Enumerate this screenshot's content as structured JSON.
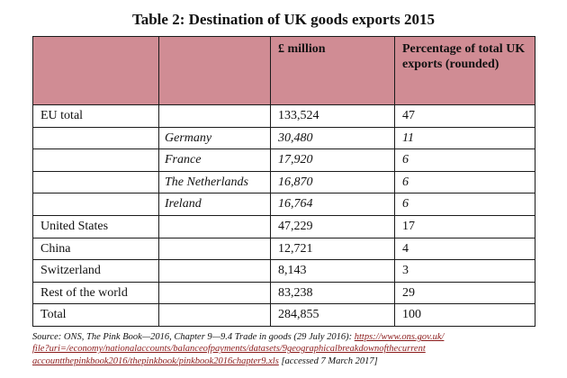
{
  "title": "Table 2: Destination of UK goods exports 2015",
  "table": {
    "headers": [
      "",
      "",
      "£ million",
      "Percentage of total UK exports (rounded)"
    ],
    "rows": [
      {
        "region": "EU total",
        "country": "",
        "value": "133,524",
        "pct": "47",
        "italic": false
      },
      {
        "region": "",
        "country": "Germany",
        "value": "30,480",
        "pct": "11",
        "italic": true
      },
      {
        "region": "",
        "country": "France",
        "value": "17,920",
        "pct": "6",
        "italic": true
      },
      {
        "region": "",
        "country": "The Netherlands",
        "value": "16,870",
        "pct": "6",
        "italic": true
      },
      {
        "region": "",
        "country": "Ireland",
        "value": "16,764",
        "pct": "6",
        "italic": true
      },
      {
        "region": "United States",
        "country": "",
        "value": "47,229",
        "pct": "17",
        "italic": false
      },
      {
        "region": "China",
        "country": "",
        "value": "12,721",
        "pct": "4",
        "italic": false
      },
      {
        "region": "Switzerland",
        "country": "",
        "value": "8,143",
        "pct": "3",
        "italic": false
      },
      {
        "region": "Rest of the world",
        "country": "",
        "value": "83,238",
        "pct": "29",
        "italic": false
      },
      {
        "region": "Total",
        "country": "",
        "value": "284,855",
        "pct": "100",
        "italic": false
      }
    ]
  },
  "source": {
    "prefix": "Source: ONS, The Pink Book—2016, Chapter 9—9.4 Trade in goods (29 July 2016): ",
    "link_line1": "https://www.ons.gov.uk/",
    "link_line2": "file?uri=/economy/nationalaccounts/balanceofpayments/datasets/9geographicalbreakdownofthecurrent",
    "link_line3": "accountthepinkbook2016/thepinkbook/pinkbook2016chapter9.xls",
    "suffix": " [accessed 7 March 2017]"
  },
  "colors": {
    "header_bg": "#d08c94",
    "link": "#8b1a1a"
  }
}
